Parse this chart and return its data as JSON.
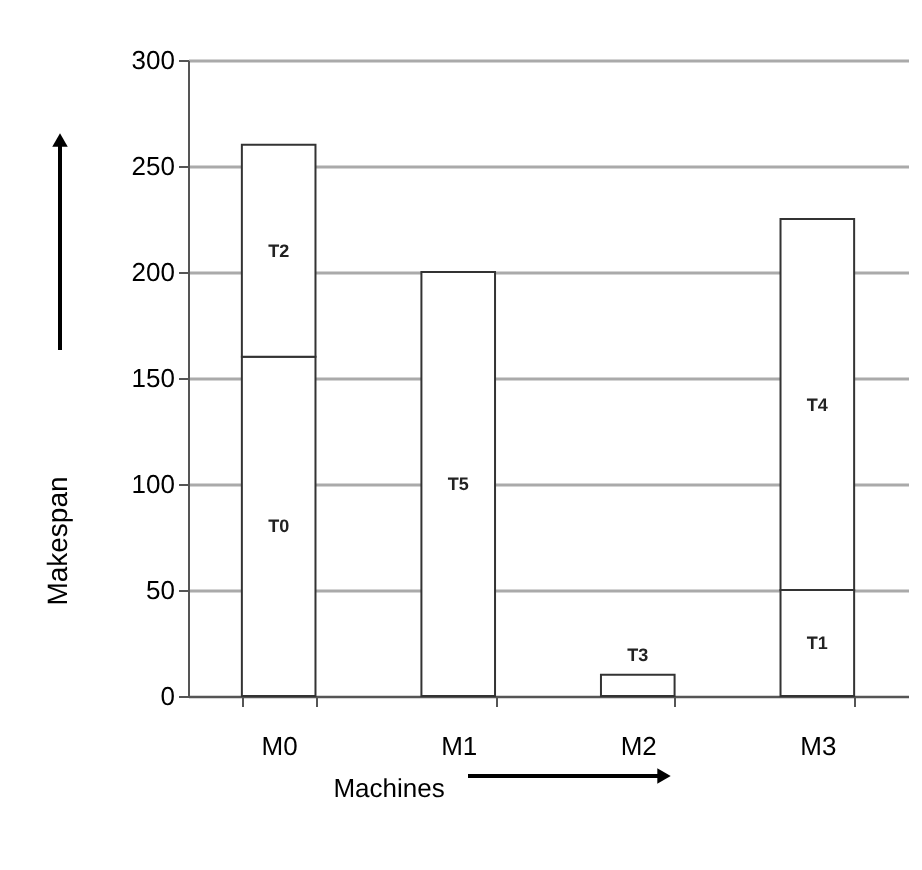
{
  "chart_data": {
    "type": "bar",
    "stacked": true,
    "xlabel": "Machines",
    "ylabel": "Makespan",
    "categories": [
      "M0",
      "M1",
      "M2",
      "M3"
    ],
    "series": [
      {
        "color": "#ffffff",
        "values": [
          160,
          200,
          10,
          50
        ],
        "value_labels": [
          "T0",
          "T5",
          "T3",
          "T1"
        ]
      },
      {
        "color": "#ffffff",
        "values": [
          100,
          null,
          null,
          175
        ],
        "value_labels": [
          "T2",
          null,
          null,
          "T4"
        ]
      }
    ],
    "ylim": [
      0,
      300
    ],
    "yticks": [
      0,
      50,
      100,
      150,
      200,
      250,
      300
    ],
    "grid": "y"
  }
}
